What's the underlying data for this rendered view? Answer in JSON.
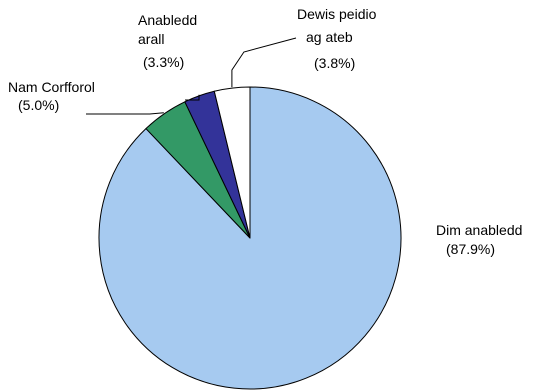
{
  "chart_data": {
    "type": "pie",
    "start_angle_deg": 0,
    "direction": "clockwise",
    "slices": [
      {
        "key": "dim",
        "label": "Dim anabledd",
        "value": 87.9,
        "value_label": "(87.9%)",
        "color": "#a6caf0"
      },
      {
        "key": "nam",
        "label": "Nam Corfforol",
        "value": 5.0,
        "value_label": "(5.0%)",
        "color": "#339966"
      },
      {
        "key": "anabledd",
        "label": "Anabledd arall",
        "line1": "Anabledd",
        "line2": "arall",
        "value": 3.3,
        "value_label": "(3.3%)",
        "color": "#333399"
      },
      {
        "key": "dewis",
        "label": "Dewis peidio ag ateb",
        "line1": "Dewis peidio",
        "line2": "ag ateb",
        "value": 3.8,
        "value_label": "(3.8%)",
        "color": "#ffffff"
      }
    ]
  }
}
